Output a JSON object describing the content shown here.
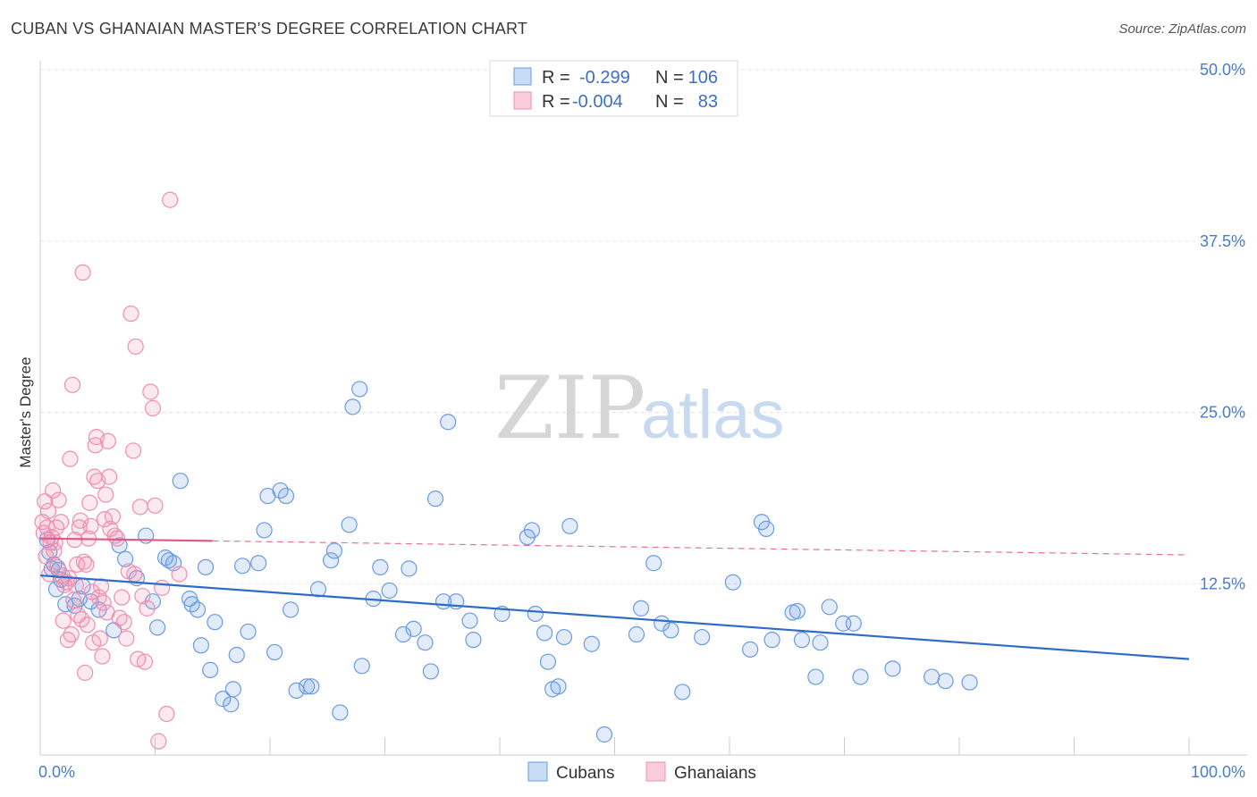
{
  "title": "CUBAN VS GHANAIAN MASTER'S DEGREE CORRELATION CHART",
  "source": "Source: ZipAtlas.com",
  "watermark": {
    "zip": "ZIP",
    "atlas": "atlas"
  },
  "colors": {
    "blue": "#6a9be0",
    "blue_line": "#2f6cc7",
    "pink": "#ee8fb0",
    "pink_line": "#e05a89",
    "accent_text": "#3d6fc0"
  },
  "legend_top": [
    {
      "r_label": "R =",
      "r_value": "-0.299",
      "n_label": "N =",
      "n_value": "106",
      "color": "blue"
    },
    {
      "r_label": "R =",
      "r_value": "-0.004",
      "n_label": "N =",
      "n_value": "83",
      "color": "pink"
    }
  ],
  "legend_bottom": [
    {
      "label": "Cubans",
      "color": "blue"
    },
    {
      "label": "Ghanaians",
      "color": "pink"
    }
  ],
  "chart_data": {
    "type": "scatter",
    "xlabel": "",
    "ylabel": "Master's Degree",
    "xlim": [
      0,
      100
    ],
    "ylim": [
      0,
      50
    ],
    "x_tick_labels": [
      {
        "value": 0,
        "label": "0.0%"
      },
      {
        "value": 100,
        "label": "100.0%"
      }
    ],
    "y_tick_labels": [
      {
        "value": 12.5,
        "label": "12.5%"
      },
      {
        "value": 25,
        "label": "25.0%"
      },
      {
        "value": 37.5,
        "label": "37.5%"
      },
      {
        "value": 50,
        "label": "50.0%"
      }
    ],
    "series": [
      {
        "name": "Cubans",
        "color": "blue",
        "trend": {
          "x": [
            0,
            100
          ],
          "y": [
            13.1,
            7.0
          ],
          "dashed_from": null
        },
        "points": [
          [
            0.6,
            15.7
          ],
          [
            0.8,
            14.8
          ],
          [
            1.0,
            13.6
          ],
          [
            1.2,
            13.9
          ],
          [
            1.4,
            12.1
          ],
          [
            1.6,
            13.5
          ],
          [
            1.8,
            12.8
          ],
          [
            2.2,
            11.0
          ],
          [
            3.0,
            10.9
          ],
          [
            3.4,
            11.4
          ],
          [
            3.7,
            12.3
          ],
          [
            4.4,
            11.2
          ],
          [
            5.1,
            10.6
          ],
          [
            6.4,
            9.1
          ],
          [
            6.9,
            15.3
          ],
          [
            7.4,
            14.3
          ],
          [
            8.4,
            12.9
          ],
          [
            9.2,
            16.0
          ],
          [
            9.8,
            11.2
          ],
          [
            10.2,
            9.3
          ],
          [
            10.9,
            14.4
          ],
          [
            11.2,
            14.2
          ],
          [
            11.6,
            14.0
          ],
          [
            12.2,
            20.0
          ],
          [
            13.0,
            11.4
          ],
          [
            13.2,
            11.0
          ],
          [
            13.7,
            10.6
          ],
          [
            14.4,
            13.7
          ],
          [
            14.8,
            6.2
          ],
          [
            15.2,
            9.7
          ],
          [
            15.9,
            4.1
          ],
          [
            16.6,
            3.7
          ],
          [
            16.8,
            4.8
          ],
          [
            17.1,
            7.3
          ],
          [
            17.6,
            13.8
          ],
          [
            18.1,
            9.0
          ],
          [
            19.0,
            14.0
          ],
          [
            19.5,
            16.4
          ],
          [
            19.8,
            18.9
          ],
          [
            20.4,
            7.5
          ],
          [
            20.9,
            19.3
          ],
          [
            21.4,
            18.9
          ],
          [
            21.8,
            10.6
          ],
          [
            22.3,
            4.7
          ],
          [
            23.2,
            5.0
          ],
          [
            23.6,
            5.0
          ],
          [
            24.2,
            12.1
          ],
          [
            25.3,
            14.2
          ],
          [
            25.6,
            14.9
          ],
          [
            26.1,
            3.1
          ],
          [
            26.9,
            16.8
          ],
          [
            27.2,
            25.4
          ],
          [
            27.8,
            26.7
          ],
          [
            28.0,
            6.5
          ],
          [
            29.0,
            11.4
          ],
          [
            29.6,
            13.7
          ],
          [
            30.4,
            12.0
          ],
          [
            31.6,
            8.8
          ],
          [
            32.1,
            13.6
          ],
          [
            32.5,
            9.2
          ],
          [
            33.5,
            8.2
          ],
          [
            34.0,
            6.1
          ],
          [
            34.4,
            18.7
          ],
          [
            35.1,
            11.2
          ],
          [
            35.5,
            24.3
          ],
          [
            36.2,
            11.2
          ],
          [
            37.4,
            9.8
          ],
          [
            37.7,
            8.4
          ],
          [
            40.2,
            10.3
          ],
          [
            42.4,
            15.9
          ],
          [
            42.8,
            16.4
          ],
          [
            43.1,
            10.3
          ],
          [
            43.9,
            8.9
          ],
          [
            44.2,
            6.8
          ],
          [
            44.6,
            4.8
          ],
          [
            45.1,
            5.0
          ],
          [
            45.6,
            8.6
          ],
          [
            46.1,
            16.7
          ],
          [
            48.0,
            8.1
          ],
          [
            49.1,
            1.5
          ],
          [
            51.9,
            8.8
          ],
          [
            52.3,
            10.7
          ],
          [
            53.4,
            14.0
          ],
          [
            54.1,
            9.6
          ],
          [
            54.9,
            9.1
          ],
          [
            55.9,
            4.6
          ],
          [
            57.6,
            8.6
          ],
          [
            60.3,
            12.6
          ],
          [
            61.8,
            7.7
          ],
          [
            62.8,
            17.0
          ],
          [
            63.2,
            16.5
          ],
          [
            63.7,
            8.4
          ],
          [
            65.5,
            10.4
          ],
          [
            65.9,
            10.5
          ],
          [
            66.3,
            8.4
          ],
          [
            67.5,
            5.7
          ],
          [
            67.9,
            8.2
          ],
          [
            68.7,
            10.8
          ],
          [
            69.9,
            9.6
          ],
          [
            70.8,
            9.6
          ],
          [
            71.4,
            5.7
          ],
          [
            74.2,
            6.3
          ],
          [
            77.6,
            5.7
          ],
          [
            78.8,
            5.4
          ],
          [
            80.9,
            5.3
          ],
          [
            14.0,
            8.0
          ]
        ]
      },
      {
        "name": "Ghanaians",
        "color": "pink",
        "trend": {
          "x": [
            0,
            100
          ],
          "y": [
            15.8,
            14.6
          ],
          "dashed_from": 15
        },
        "points": [
          [
            0.2,
            17.0
          ],
          [
            0.3,
            16.2
          ],
          [
            0.4,
            18.5
          ],
          [
            0.5,
            14.5
          ],
          [
            0.6,
            16.6
          ],
          [
            0.7,
            17.8
          ],
          [
            0.8,
            13.2
          ],
          [
            0.9,
            15.5
          ],
          [
            1.0,
            15.9
          ],
          [
            1.1,
            19.3
          ],
          [
            1.2,
            14.9
          ],
          [
            1.3,
            15.5
          ],
          [
            1.4,
            16.6
          ],
          [
            1.5,
            13.7
          ],
          [
            1.6,
            18.6
          ],
          [
            1.8,
            17.0
          ],
          [
            1.9,
            13.1
          ],
          [
            2.0,
            9.8
          ],
          [
            2.1,
            12.4
          ],
          [
            2.3,
            12.6
          ],
          [
            2.4,
            8.4
          ],
          [
            2.5,
            12.9
          ],
          [
            2.6,
            21.6
          ],
          [
            2.7,
            8.8
          ],
          [
            2.8,
            27.0
          ],
          [
            2.9,
            11.3
          ],
          [
            3.0,
            15.7
          ],
          [
            3.1,
            12.4
          ],
          [
            3.2,
            13.9
          ],
          [
            3.3,
            10.2
          ],
          [
            3.4,
            16.6
          ],
          [
            3.5,
            17.1
          ],
          [
            3.6,
            9.9
          ],
          [
            3.7,
            35.2
          ],
          [
            3.8,
            14.1
          ],
          [
            3.9,
            6.0
          ],
          [
            4.0,
            13.9
          ],
          [
            4.1,
            9.5
          ],
          [
            4.2,
            15.8
          ],
          [
            4.3,
            18.4
          ],
          [
            4.4,
            16.7
          ],
          [
            4.5,
            11.9
          ],
          [
            4.6,
            8.2
          ],
          [
            4.7,
            20.3
          ],
          [
            4.8,
            22.6
          ],
          [
            4.9,
            23.2
          ],
          [
            5.0,
            20.0
          ],
          [
            5.1,
            11.5
          ],
          [
            5.2,
            8.5
          ],
          [
            5.3,
            12.3
          ],
          [
            5.4,
            7.2
          ],
          [
            5.5,
            11.1
          ],
          [
            5.6,
            17.2
          ],
          [
            5.7,
            19.0
          ],
          [
            5.8,
            10.4
          ],
          [
            5.9,
            22.9
          ],
          [
            6.0,
            20.3
          ],
          [
            6.1,
            16.5
          ],
          [
            6.3,
            17.4
          ],
          [
            6.5,
            16.0
          ],
          [
            6.7,
            15.8
          ],
          [
            6.9,
            10.0
          ],
          [
            7.1,
            11.5
          ],
          [
            7.3,
            9.7
          ],
          [
            7.5,
            8.5
          ],
          [
            7.7,
            13.4
          ],
          [
            7.9,
            32.2
          ],
          [
            8.1,
            22.2
          ],
          [
            8.2,
            13.2
          ],
          [
            8.3,
            29.8
          ],
          [
            8.5,
            7.0
          ],
          [
            8.7,
            18.1
          ],
          [
            8.9,
            11.6
          ],
          [
            9.1,
            6.8
          ],
          [
            9.3,
            10.7
          ],
          [
            9.6,
            26.5
          ],
          [
            9.8,
            25.3
          ],
          [
            10.0,
            18.2
          ],
          [
            10.3,
            1.0
          ],
          [
            10.6,
            12.2
          ],
          [
            11.0,
            3.0
          ],
          [
            11.3,
            40.5
          ],
          [
            12.1,
            13.2
          ]
        ]
      }
    ],
    "grid": true,
    "legend_placement": "top-center"
  }
}
